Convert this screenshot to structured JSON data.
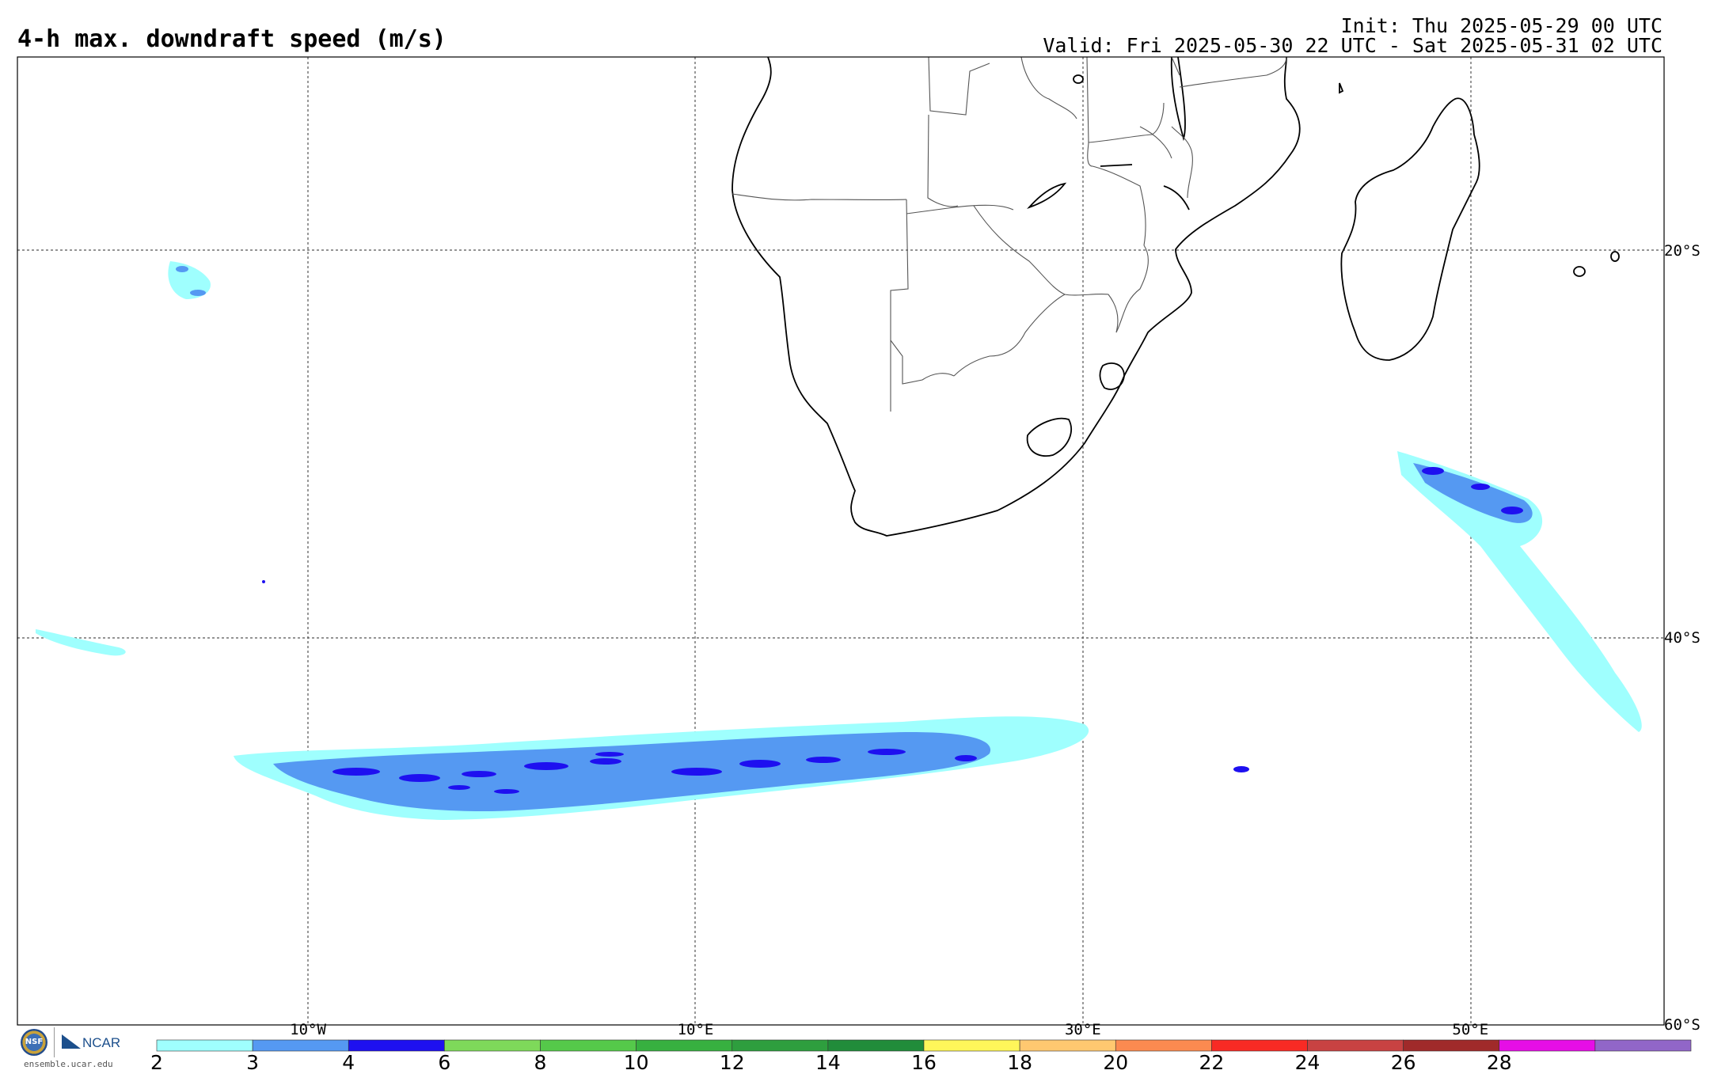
{
  "header": {
    "title": "4-h max. downdraft speed (m/s)",
    "init": "Init: Thu 2025-05-29 00 UTC",
    "valid": "Valid: Fri 2025-05-30 22 UTC - Sat 2025-05-31 02 UTC"
  },
  "map": {
    "lon_labels": [
      {
        "value": -10,
        "label": "10°W"
      },
      {
        "value": 10,
        "label": "10°E"
      },
      {
        "value": 30,
        "label": "30°E"
      },
      {
        "value": 50,
        "label": "50°E"
      }
    ],
    "lat_labels": [
      {
        "value": -20,
        "label": "20°S"
      },
      {
        "value": -40,
        "label": "40°S"
      },
      {
        "value": -60,
        "label": "60°S"
      }
    ],
    "extent": {
      "lon_min": -25,
      "lon_max": 60,
      "lat_min": -60,
      "lat_max": -10
    }
  },
  "colorbar": {
    "ticks": [
      "2",
      "3",
      "4",
      "6",
      "8",
      "10",
      "12",
      "14",
      "16",
      "18",
      "20",
      "22",
      "24",
      "26",
      "28"
    ],
    "colors": [
      "#9ffffe",
      "#5599f2",
      "#1e10f0",
      "#7ed95a",
      "#55c94a",
      "#37b040",
      "#2e9e3e",
      "#218c3a",
      "#fff65a",
      "#ffc870",
      "#fb8a50",
      "#f82a24",
      "#c84242",
      "#a02a2a",
      "#e60ee6",
      "#9166c8"
    ]
  },
  "branding": {
    "nsf": "NSF",
    "ncar": "NCAR",
    "site": "ensemble.ucar.edu"
  }
}
